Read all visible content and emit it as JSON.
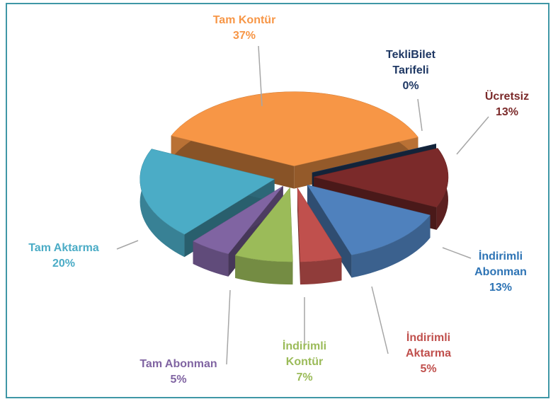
{
  "chart_data": {
    "type": "pie",
    "categories": [
      "Tam Kontür",
      "TekliBilet Tarifeli",
      "Ücretsiz",
      "İndirimli Abonman",
      "İndirimli Aktarma",
      "İndirimli Kontür",
      "Tam Abonman",
      "Tam Aktarma"
    ],
    "values": [
      37,
      0,
      13,
      13,
      5,
      7,
      5,
      20
    ],
    "value_labels": [
      "37%",
      "0%",
      "13%",
      "13%",
      "5%",
      "7%",
      "5%",
      "20%"
    ],
    "colors": [
      "#f79646",
      "#1f3a5f",
      "#7b2a2a",
      "#4f81bd",
      "#c0504d",
      "#9bbb59",
      "#8064a2",
      "#4bacc6"
    ],
    "label_colors": [
      "#f79646",
      "#1f3864",
      "#7b2a2a",
      "#2e74b5",
      "#c0504d",
      "#9bbb59",
      "#8064a2",
      "#4bacc6"
    ]
  }
}
